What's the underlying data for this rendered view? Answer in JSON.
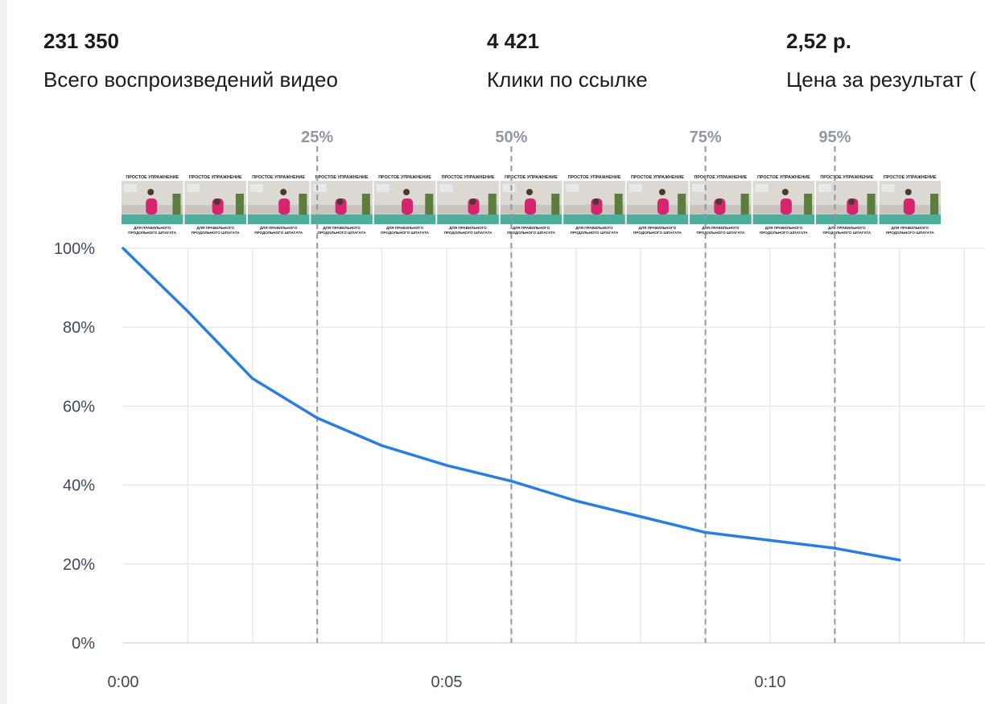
{
  "stats": [
    {
      "value": "231 350",
      "label": "Всего воспроизведений видео"
    },
    {
      "value": "4 421",
      "label": "Клики по ссылке"
    },
    {
      "value": "2,52 р.",
      "label": "Цена за результат ("
    }
  ],
  "chart_data": {
    "type": "line",
    "x_unit": "seconds",
    "y_ticks": [
      "0%",
      "20%",
      "40%",
      "60%",
      "80%",
      "100%"
    ],
    "x_ticks": [
      {
        "t": 0,
        "label": "0:00"
      },
      {
        "t": 5,
        "label": "0:05"
      },
      {
        "t": 10,
        "label": "0:10"
      }
    ],
    "xlim": [
      0,
      13
    ],
    "ylim": [
      0,
      100
    ],
    "grid": true,
    "markers": [
      {
        "t": 3,
        "label": "25%"
      },
      {
        "t": 6,
        "label": "50%"
      },
      {
        "t": 9,
        "label": "75%"
      },
      {
        "t": 11,
        "label": "95%"
      }
    ],
    "series": [
      {
        "color": "#2a7de1",
        "x": [
          0,
          1,
          2,
          3,
          4,
          5,
          6,
          7,
          8,
          9,
          10,
          11,
          12
        ],
        "values": [
          100,
          84,
          67,
          57,
          50,
          45,
          41,
          36,
          32,
          28,
          26,
          24,
          21
        ]
      }
    ],
    "thumbnails": {
      "count": 13,
      "caption_top": "ПРОСТОЕ УПРАЖНЕНИЕ",
      "caption_bottom_1": "ДЛЯ ПРАВИЛЬНОГО",
      "caption_bottom_2": "ПРОДОЛЬНОГО ШПАГАТА"
    }
  }
}
